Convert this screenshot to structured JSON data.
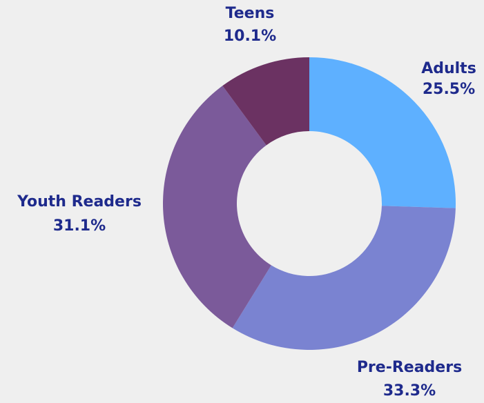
{
  "chart_data": {
    "type": "donut",
    "categories": [
      "Adults",
      "Pre-Readers",
      "Youth Readers",
      "Teens"
    ],
    "values": [
      25.5,
      33.3,
      31.1,
      10.1
    ],
    "value_labels": [
      "25.5%",
      "33.3%",
      "31.1%",
      "10.1%"
    ],
    "colors": [
      "#5eb0ff",
      "#7a83d1",
      "#7b5a9a",
      "#6b3262"
    ]
  }
}
